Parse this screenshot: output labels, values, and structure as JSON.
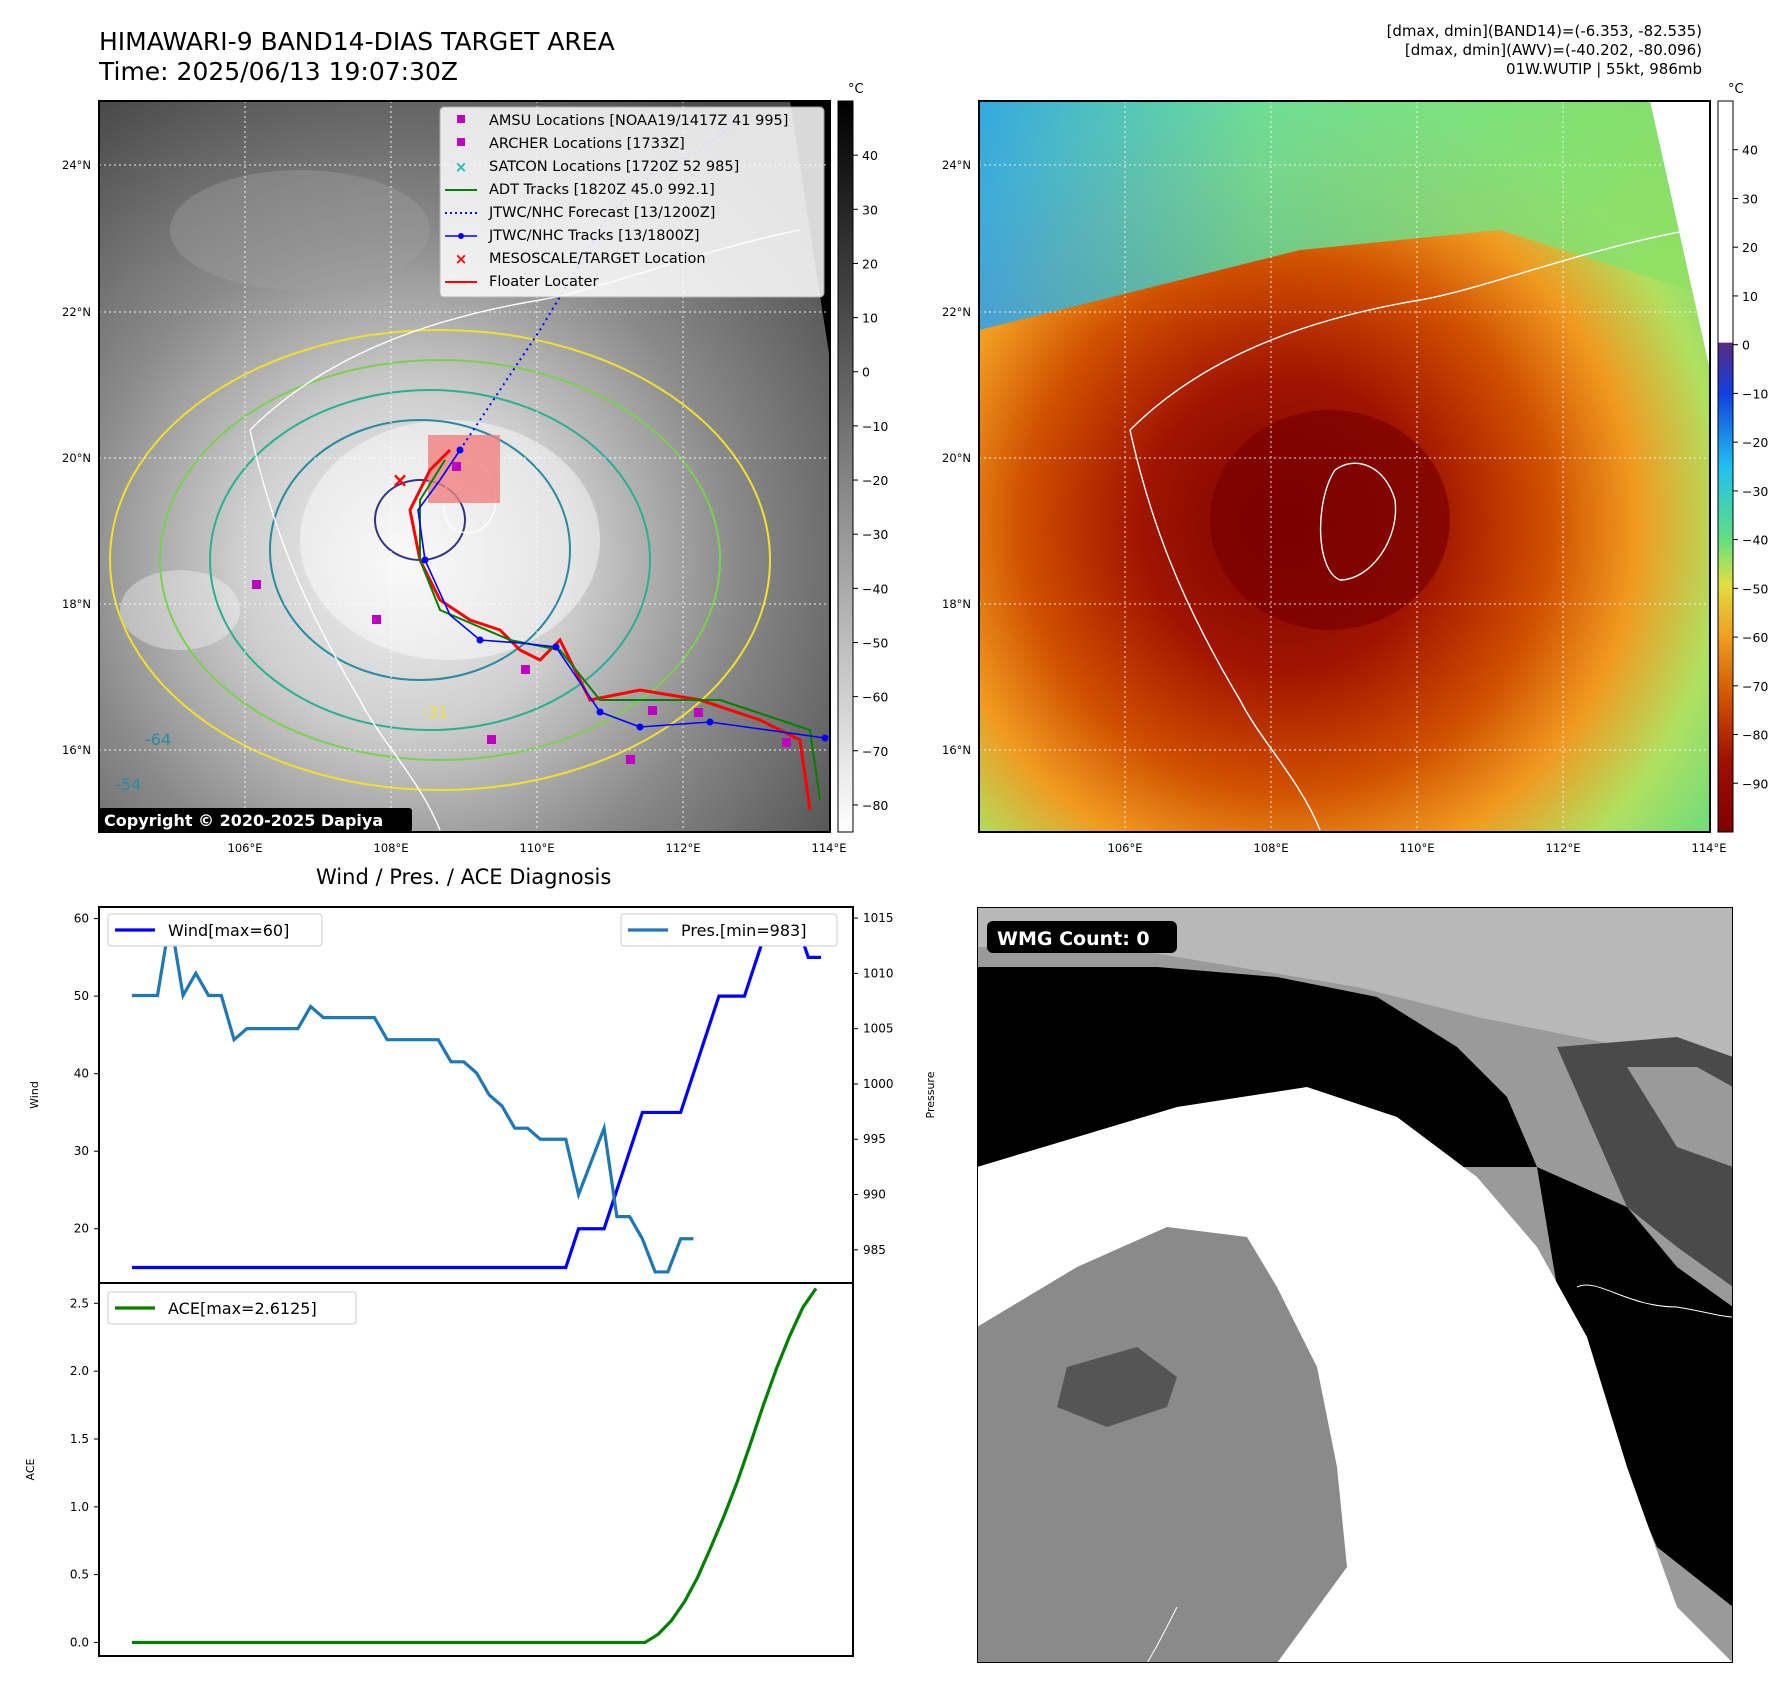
{
  "header": {
    "title": "HIMAWARI-9 BAND14-DIAS TARGET AREA",
    "time": "Time: 2025/06/13 19:07:30Z",
    "dmax_band14": "[dmax, dmin](BAND14)=(-6.353, -82.535)",
    "dmax_awv": "[dmax, dmin](AWV)=(-40.202, -80.096)",
    "storm": "01W.WUTIP | 55kt, 986mb"
  },
  "map": {
    "lat_labels": [
      "24°N",
      "22°N",
      "20°N",
      "18°N",
      "16°N"
    ],
    "lon_labels": [
      "106°E",
      "108°E",
      "110°E",
      "112°E",
      "114°E"
    ],
    "copyright": "Copyright © 2020-2025 Dapiya",
    "contour_labels": [
      "-54",
      "-64",
      "-31"
    ],
    "colorbar1": {
      "unit": "°C",
      "ticks": [
        "40",
        "30",
        "20",
        "10",
        "0",
        "−10",
        "−20",
        "−30",
        "−40",
        "−50",
        "−60",
        "−70",
        "−80"
      ]
    },
    "colorbar2": {
      "unit": "°C",
      "ticks": [
        "40",
        "30",
        "20",
        "10",
        "0",
        "−10",
        "−20",
        "−30",
        "−40",
        "−50",
        "−60",
        "−70",
        "−80",
        "−90"
      ]
    },
    "legend": [
      {
        "label": "AMSU Locations [NOAA19/1417Z 41 995]",
        "color": "#c000c0"
      },
      {
        "label": "ARCHER Locations [1733Z]",
        "color": "#c000c0"
      },
      {
        "label": "SATCON Locations [1720Z 52 985]",
        "color": "#20b8b8"
      },
      {
        "label": "ADT Tracks [1820Z 45.0 992.1]",
        "color": "#008000"
      },
      {
        "label": "JTWC/NHC Forecast [13/1200Z]",
        "color": "#0000ff"
      },
      {
        "label": "JTWC/NHC Tracks [13/1800Z]",
        "color": "#0000ff"
      },
      {
        "label": "MESOSCALE/TARGET Location",
        "color": "#ff0000"
      },
      {
        "label": "Floater Locater",
        "color": "#ff0000"
      }
    ]
  },
  "wmg": {
    "label": "WMG Count: 0"
  },
  "chart_data": [
    {
      "type": "line",
      "title": "Wind / Pres. / ACE Diagnosis",
      "ylabel": "Wind",
      "ylim": [
        13,
        61.5
      ],
      "yticks": [
        20,
        30,
        40,
        50,
        60
      ],
      "series": [
        {
          "name": "Wind[max=60]",
          "axis": "left",
          "color": "#0000ff",
          "values": [
            15,
            15,
            15,
            15,
            15,
            15,
            15,
            15,
            15,
            15,
            15,
            15,
            15,
            15,
            15,
            15,
            15,
            15,
            15,
            15,
            15,
            15,
            15,
            15,
            15,
            15,
            15,
            15,
            15,
            15,
            15,
            15,
            15,
            15,
            15,
            20,
            20,
            20,
            25,
            30,
            35,
            35,
            35,
            35,
            40,
            45,
            50,
            50,
            50,
            55,
            60,
            60,
            60,
            55,
            55
          ]
        },
        {
          "name": "Pres.[min=983]",
          "axis": "right",
          "color": "#1f77b4",
          "ylabel": "Pressure",
          "ylim": [
            982,
            1016
          ],
          "yticks": [
            985,
            990,
            995,
            1000,
            1005,
            1010,
            1015
          ],
          "values": [
            1008,
            1008,
            1008,
            1015,
            1008,
            1010,
            1008,
            1008,
            1004,
            1005,
            1005,
            1005,
            1005,
            1005,
            1007,
            1006,
            1006,
            1006,
            1006,
            1006,
            1004,
            1004,
            1004,
            1004,
            1004,
            1002,
            1002,
            1001,
            999,
            998,
            996,
            996,
            995,
            995,
            995,
            990,
            993,
            996,
            988,
            988,
            986,
            983,
            983,
            986,
            986
          ]
        }
      ]
    },
    {
      "type": "line",
      "ylabel": "ACE",
      "ylim": [
        -0.1,
        2.65
      ],
      "yticks": [
        0.0,
        0.5,
        1.0,
        1.5,
        2.0,
        2.5
      ],
      "series": [
        {
          "name": "ACE[max=2.6125]",
          "color": "#008000",
          "values": [
            0,
            0,
            0,
            0,
            0,
            0,
            0,
            0,
            0,
            0,
            0,
            0,
            0,
            0,
            0,
            0,
            0,
            0,
            0,
            0,
            0,
            0,
            0,
            0,
            0,
            0,
            0,
            0,
            0,
            0,
            0,
            0,
            0,
            0,
            0,
            0,
            0,
            0,
            0,
            0,
            0.06,
            0.16,
            0.3,
            0.48,
            0.7,
            0.93,
            1.18,
            1.46,
            1.75,
            2.02,
            2.26,
            2.47,
            2.61
          ]
        }
      ]
    }
  ]
}
